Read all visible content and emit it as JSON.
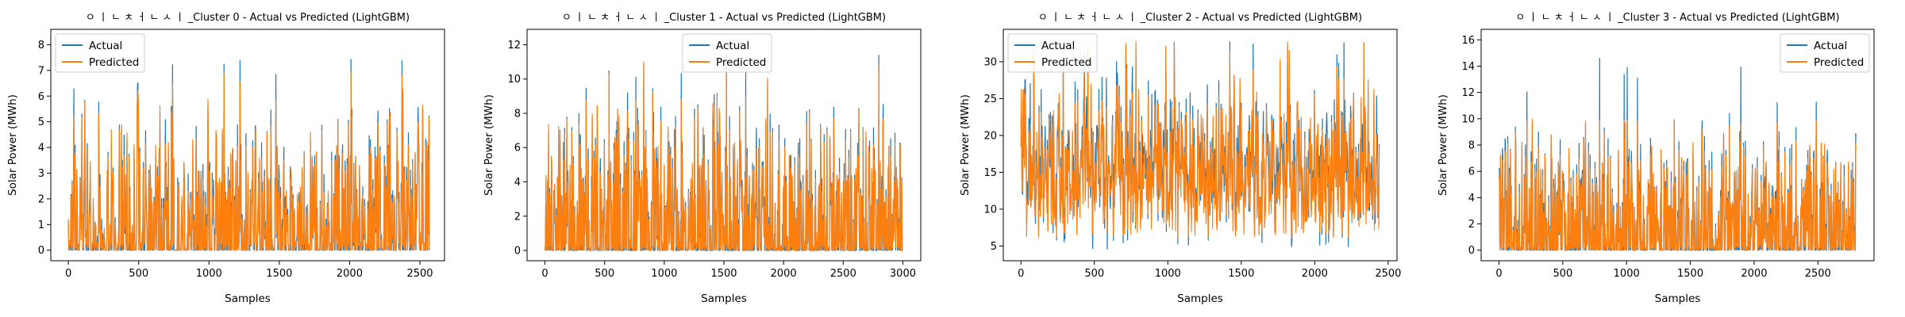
{
  "figure": {
    "colors": {
      "actual": "#1f77b4",
      "predicted": "#ff7f0e"
    }
  },
  "chart_data": [
    {
      "type": "line",
      "title": "ㅇ ㅣ ㄴ ㅊ ㅓ ㄴ ㅅ ㅣ _Cluster 0 - Actual vs Predicted (LightGBM)",
      "xlabel": "Samples",
      "ylabel": "Solar Power (MWh)",
      "xlim": [
        -125,
        2675
      ],
      "ylim": [
        -0.41,
        8.6
      ],
      "xticks": [
        0,
        500,
        1000,
        1500,
        2000,
        2500
      ],
      "yticks": [
        0,
        1,
        2,
        3,
        4,
        5,
        6,
        7,
        8
      ],
      "n_samples": 2570,
      "legend": "top-left",
      "series": [
        {
          "name": "Actual",
          "color": "#1f77b4",
          "baseline": 0,
          "peak": 8.2,
          "typical_high": 4.8
        },
        {
          "name": "Predicted",
          "color": "#ff7f0e",
          "baseline": 0,
          "peak": 7.5,
          "typical_high": 4.5
        }
      ]
    },
    {
      "type": "line",
      "title": "ㅇ ㅣ ㄴ ㅊ ㅓ ㄴ ㅅ ㅣ _Cluster 1 - Actual vs Predicted (LightGBM)",
      "xlabel": "Samples",
      "ylabel": "Solar Power (MWh)",
      "xlim": [
        -150,
        3150
      ],
      "ylim": [
        -0.6,
        12.9
      ],
      "xticks": [
        0,
        500,
        1000,
        1500,
        2000,
        2500,
        3000
      ],
      "yticks": [
        0,
        2,
        4,
        6,
        8,
        10,
        12
      ],
      "n_samples": 3000,
      "legend": "top-center",
      "series": [
        {
          "name": "Actual",
          "color": "#1f77b4",
          "baseline": 0,
          "peak": 12.0,
          "typical_high": 7.5
        },
        {
          "name": "Predicted",
          "color": "#ff7f0e",
          "baseline": 0,
          "peak": 11.3,
          "typical_high": 7.0
        }
      ]
    },
    {
      "type": "line",
      "title": "ㅇ ㅣ ㄴ ㅊ ㅓ ㄴ ㅅ ㅣ _Cluster 2 - Actual vs Predicted (LightGBM)",
      "xlabel": "Samples",
      "ylabel": "Solar Power (MWh)",
      "xlim": [
        -120,
        2560
      ],
      "ylim": [
        3.0,
        34.4
      ],
      "xticks": [
        0,
        500,
        1000,
        1500,
        2000,
        2500
      ],
      "yticks": [
        5,
        10,
        15,
        20,
        25,
        30
      ],
      "n_samples": 2440,
      "legend": "top-left",
      "series": [
        {
          "name": "Actual",
          "color": "#1f77b4",
          "baseline": 8,
          "peak": 33.0,
          "typical_high": 25
        },
        {
          "name": "Predicted",
          "color": "#ff7f0e",
          "baseline": 9,
          "peak": 33.0,
          "typical_high": 24
        }
      ]
    },
    {
      "type": "line",
      "title": "ㅇ ㅣ ㄴ ㅊ ㅓ ㄴ ㅅ ㅣ _Cluster 3 - Actual vs Predicted (LightGBM)",
      "xlabel": "Samples",
      "ylabel": "Solar Power (MWh)",
      "xlim": [
        -140,
        2940
      ],
      "ylim": [
        -0.8,
        16.8
      ],
      "xticks": [
        0,
        500,
        1000,
        1500,
        2000,
        2500
      ],
      "yticks": [
        0,
        2,
        4,
        6,
        8,
        10,
        12,
        14,
        16
      ],
      "n_samples": 2800,
      "legend": "top-right",
      "series": [
        {
          "name": "Actual",
          "color": "#1f77b4",
          "baseline": 0,
          "peak": 16.0,
          "typical_high": 8.0
        },
        {
          "name": "Predicted",
          "color": "#ff7f0e",
          "baseline": 0,
          "peak": 10.0,
          "typical_high": 7.0
        }
      ]
    }
  ]
}
